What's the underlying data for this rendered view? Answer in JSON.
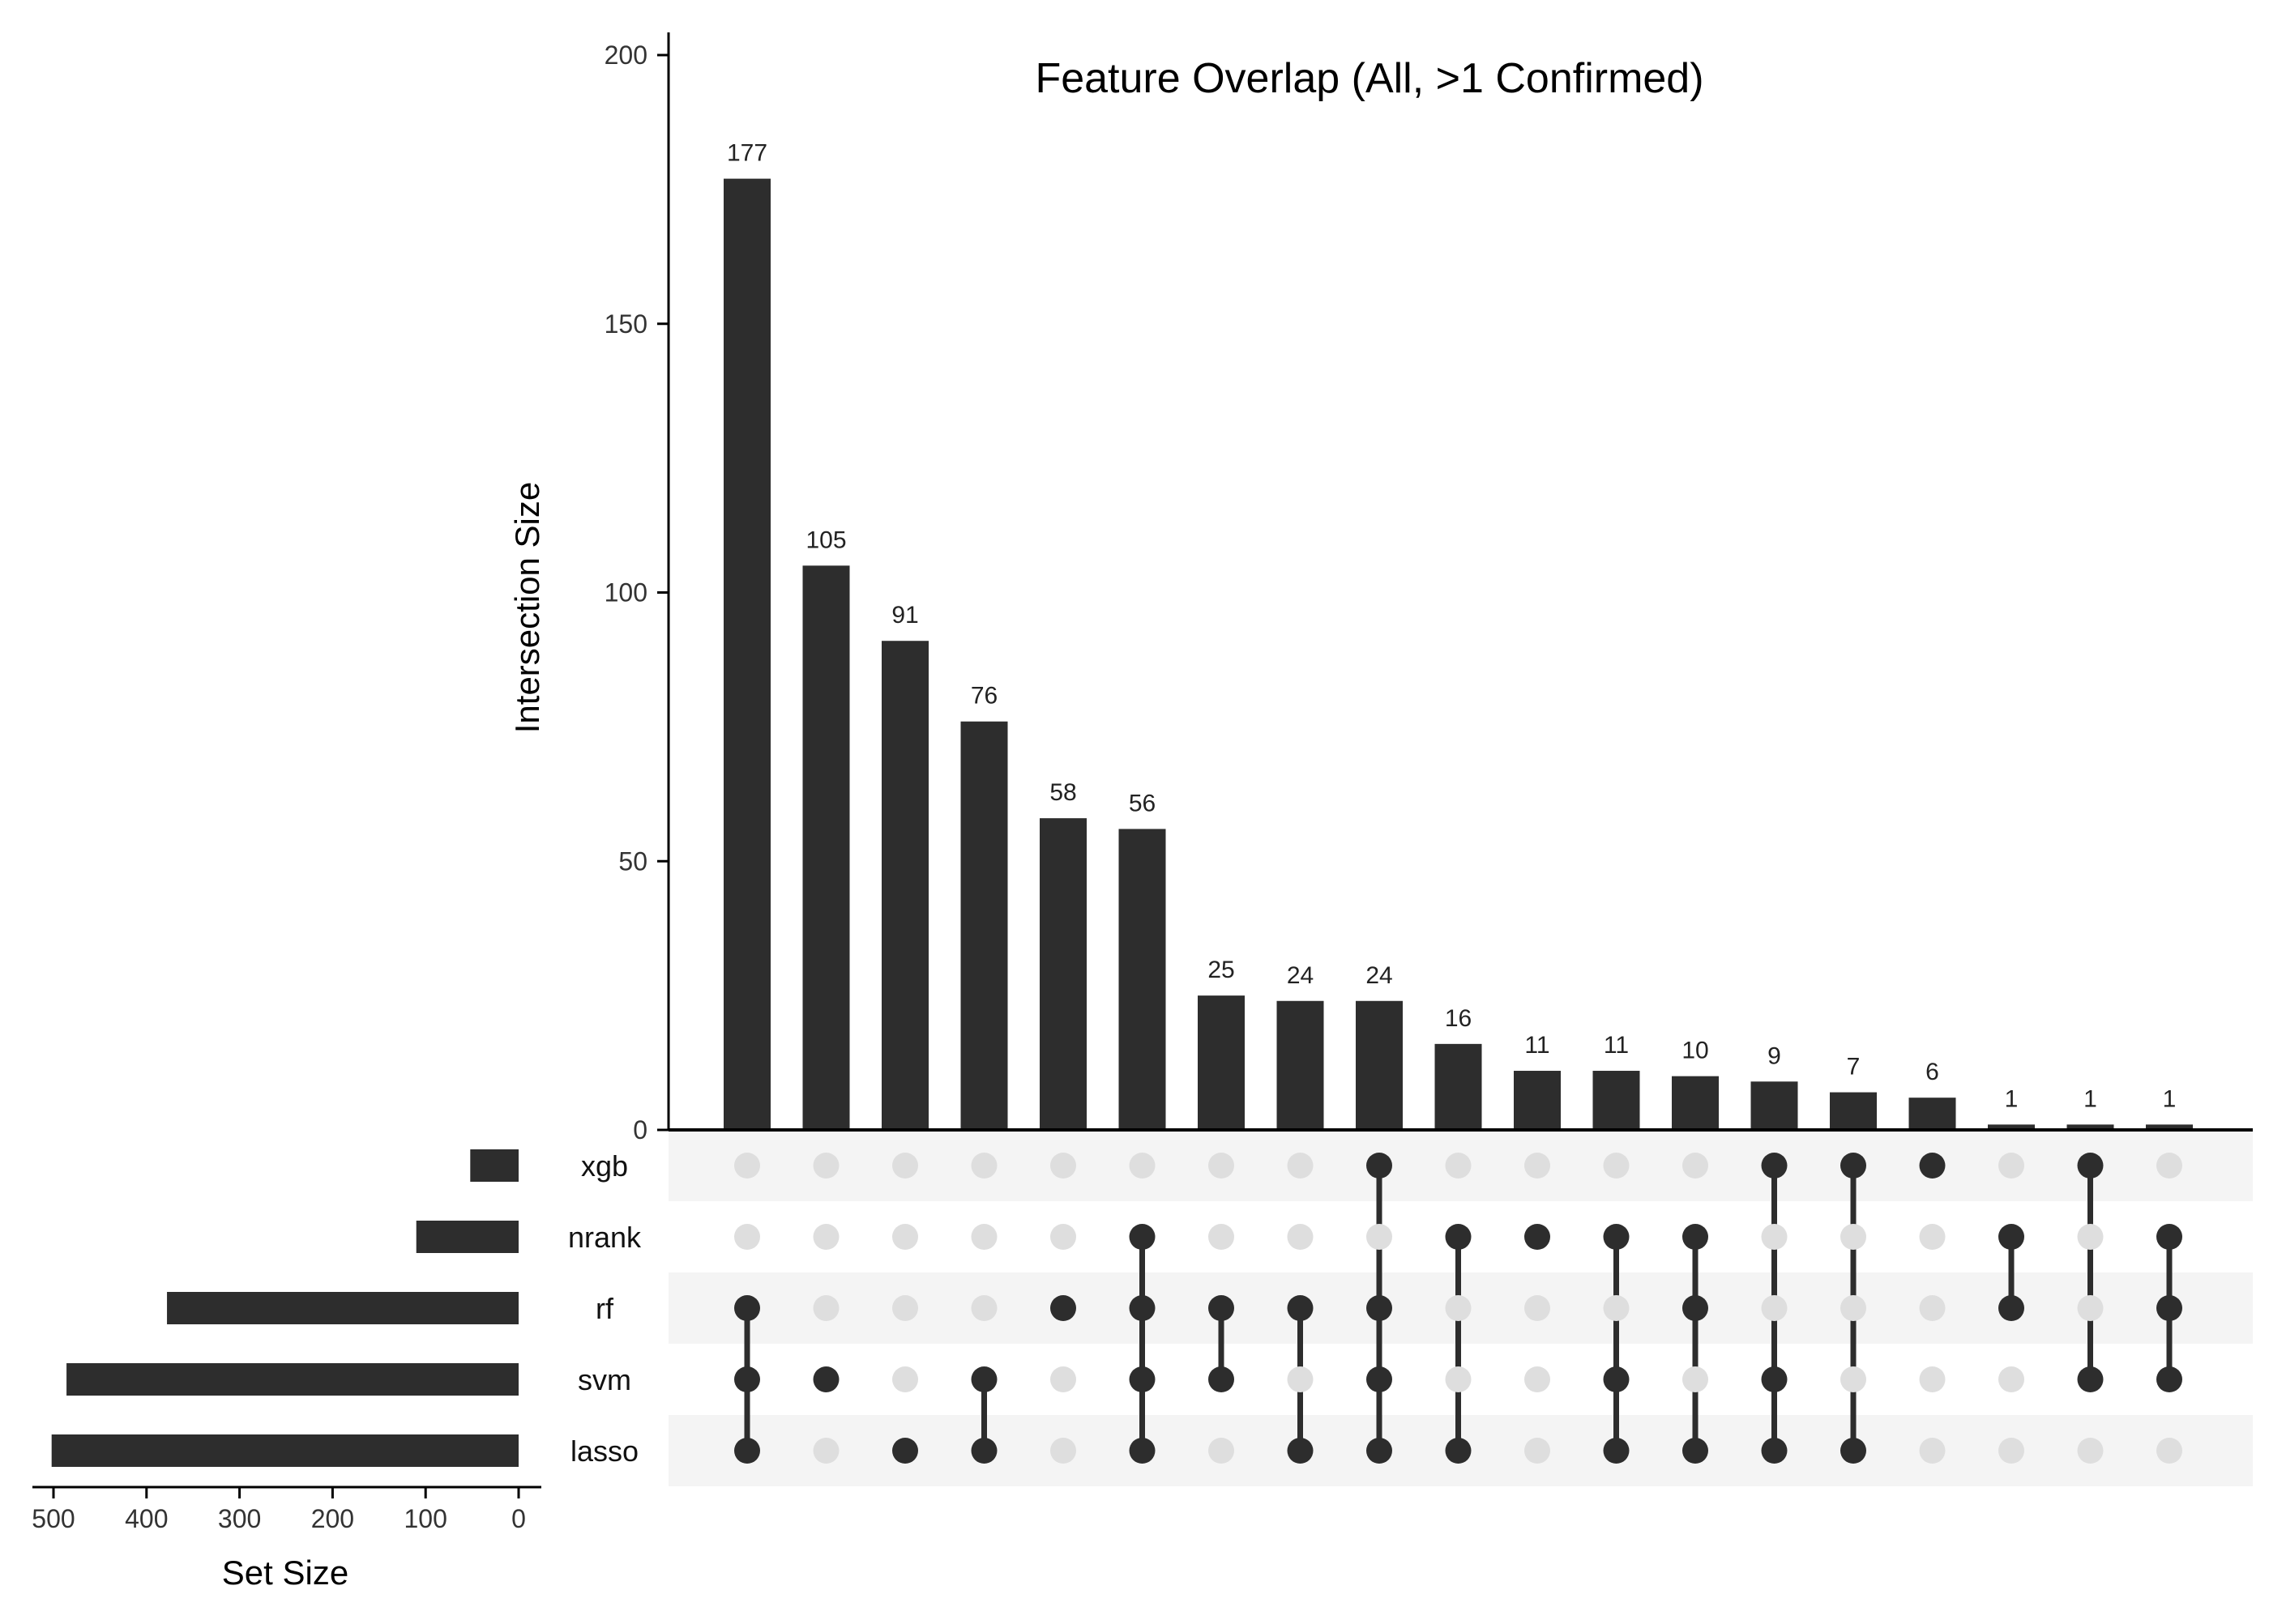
{
  "chart_data": {
    "type": "upset",
    "title": "Feature Overlap (All, >1 Confirmed)",
    "intersection_axis": {
      "label": "Intersection Size",
      "ylim": [
        0,
        200
      ],
      "ticks": [
        0,
        50,
        100,
        150,
        200
      ]
    },
    "set_size_axis": {
      "label": "Set Size",
      "xlim": [
        500,
        0
      ],
      "ticks": [
        500,
        400,
        300,
        200,
        100,
        0
      ]
    },
    "sets": [
      {
        "name": "xgb",
        "size": 52
      },
      {
        "name": "nrank",
        "size": 110
      },
      {
        "name": "rf",
        "size": 378
      },
      {
        "name": "svm",
        "size": 486
      },
      {
        "name": "lasso",
        "size": 502
      }
    ],
    "intersections": [
      {
        "value": 177,
        "label": "177",
        "members": [
          "rf",
          "svm",
          "lasso"
        ]
      },
      {
        "value": 105,
        "label": "105",
        "members": [
          "svm"
        ]
      },
      {
        "value": 91,
        "label": "91",
        "members": [
          "lasso"
        ]
      },
      {
        "value": 76,
        "label": "76",
        "members": [
          "svm",
          "lasso"
        ]
      },
      {
        "value": 58,
        "label": "58",
        "members": [
          "rf"
        ]
      },
      {
        "value": 56,
        "label": "56",
        "members": [
          "nrank",
          "rf",
          "svm",
          "lasso"
        ]
      },
      {
        "value": 25,
        "label": "25",
        "members": [
          "rf",
          "svm"
        ]
      },
      {
        "value": 24,
        "label": "24",
        "members": [
          "rf",
          "lasso"
        ]
      },
      {
        "value": 24,
        "label": "24",
        "members": [
          "xgb",
          "rf",
          "svm",
          "lasso"
        ]
      },
      {
        "value": 16,
        "label": "16",
        "members": [
          "nrank",
          "lasso"
        ]
      },
      {
        "value": 11,
        "label": "11",
        "members": [
          "nrank"
        ]
      },
      {
        "value": 11,
        "label": "11",
        "members": [
          "nrank",
          "svm",
          "lasso"
        ]
      },
      {
        "value": 10,
        "label": "10",
        "members": [
          "nrank",
          "rf",
          "lasso"
        ]
      },
      {
        "value": 9,
        "label": "9",
        "members": [
          "xgb",
          "svm",
          "lasso"
        ]
      },
      {
        "value": 7,
        "label": "7",
        "members": [
          "xgb",
          "lasso"
        ]
      },
      {
        "value": 6,
        "label": "6",
        "members": [
          "xgb"
        ]
      },
      {
        "value": 1,
        "label": "1",
        "members": [
          "nrank",
          "rf"
        ]
      },
      {
        "value": 1,
        "label": "1",
        "members": [
          "xgb",
          "svm"
        ]
      },
      {
        "value": 1,
        "label": "1",
        "members": [
          "nrank",
          "rf",
          "svm"
        ]
      }
    ],
    "colors": {
      "bar": "#2d2d2d",
      "dot_active": "#2d2d2d",
      "dot_inactive": "#dedede",
      "stripe": "#f4f4f4",
      "axis": "#000000",
      "tick_label": "#333333"
    },
    "grid": false
  }
}
